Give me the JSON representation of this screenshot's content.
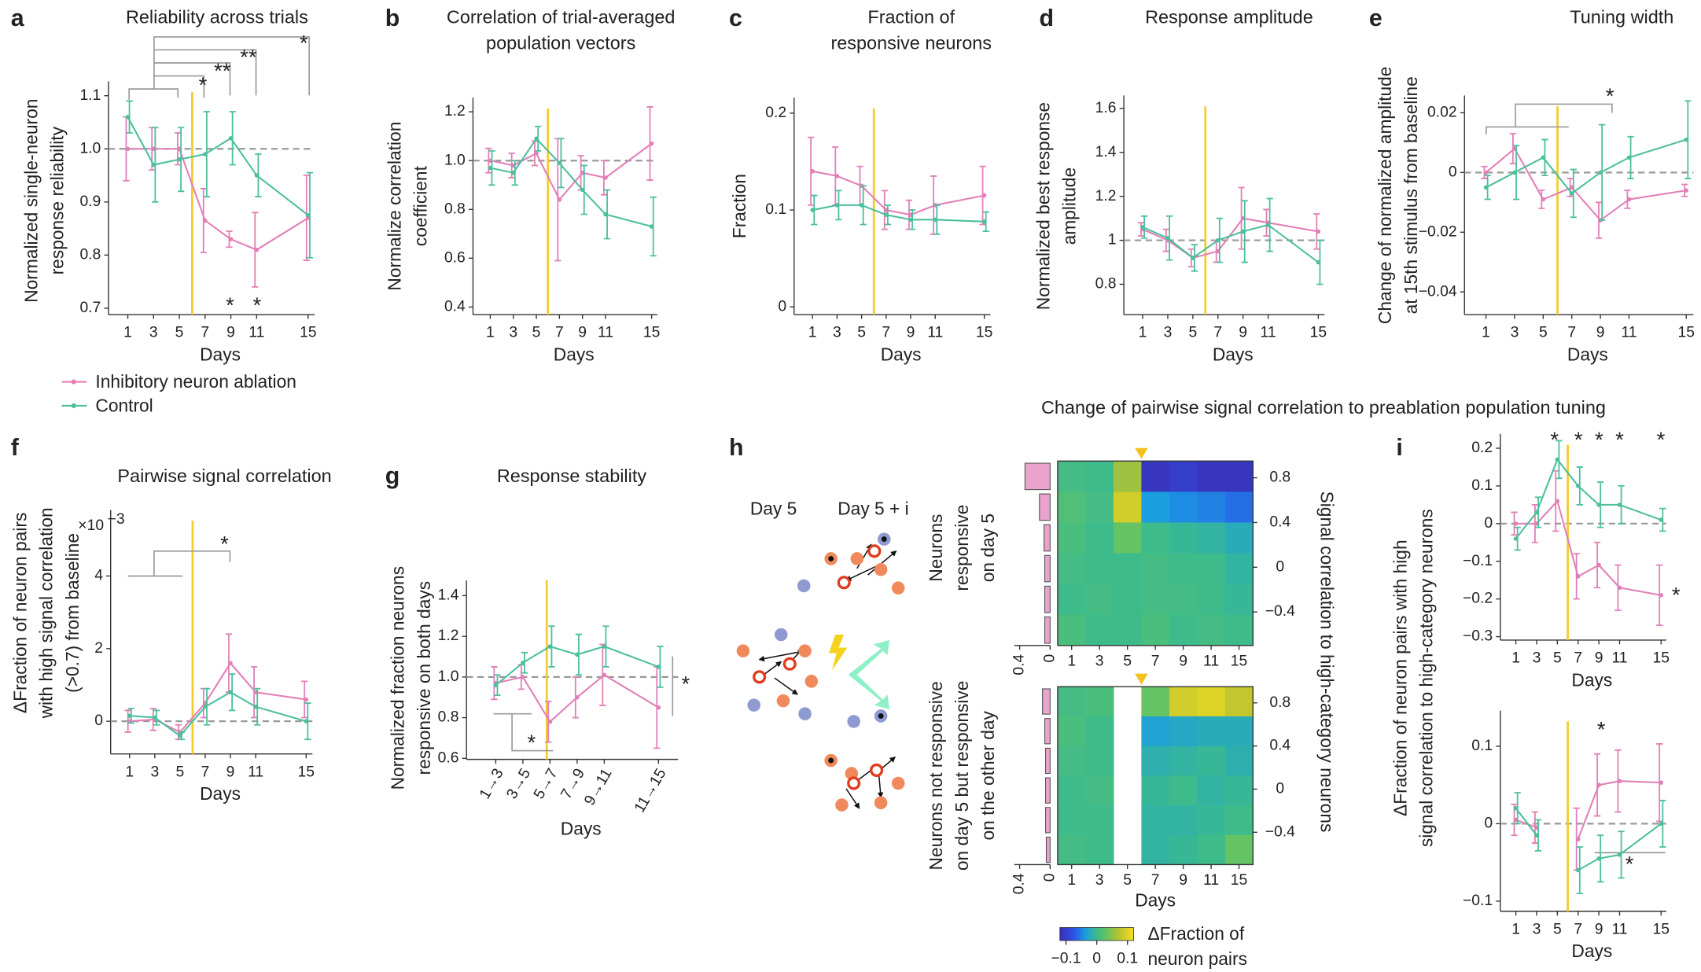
{
  "chart_data": [
    {
      "type": "line",
      "letter": "a",
      "title": [
        "Reliability across trials"
      ],
      "ylabel": [
        "Normalized single-neuron",
        "response reliability"
      ],
      "xlabel": "Days",
      "x": [
        1,
        3,
        5,
        7,
        9,
        11,
        15
      ],
      "xticks": [
        1,
        3,
        5,
        7,
        9,
        11,
        15
      ],
      "xlim": [
        -0.5,
        15.5
      ],
      "ylim": [
        0.688,
        1.127
      ],
      "yticks": [
        0.7,
        0.8,
        0.9,
        {
          "value": 1,
          "label": "1.0"
        },
        1.1
      ],
      "reference_line": 1,
      "ablation_day": 6,
      "series": [
        {
          "name": "Inhibitory neuron ablation",
          "color": "#e27fb8",
          "values": [
            1.0,
            1.0,
            1.0,
            0.865,
            0.83,
            0.81,
            0.87
          ],
          "errors": [
            0.06,
            0.04,
            0.03,
            0.06,
            0.015,
            0.07,
            0.08
          ]
        },
        {
          "name": "Control",
          "color": "#4cbf9d",
          "values": [
            1.06,
            0.97,
            0.98,
            0.99,
            1.02,
            0.95,
            0.875
          ],
          "errors": [
            0.03,
            0.07,
            0.06,
            0.08,
            0.05,
            0.04,
            0.08
          ]
        }
      ],
      "annotations": [
        {
          "text": "*",
          "color": "#e27fb8"
        },
        {
          "text": "**",
          "color": "#e27fb8"
        },
        {
          "text": "**",
          "color": "#e27fb8"
        },
        {
          "text": "*",
          "color": "#e27fb8"
        },
        {
          "text": "*",
          "color": "#e27fb8"
        },
        {
          "text": "*",
          "color": "#e27fb8"
        }
      ]
    },
    {
      "type": "line",
      "letter": "b",
      "title": [
        "Correlation of trial-averaged",
        "population vectors"
      ],
      "ylabel": [
        "Normalize correlation",
        "coefficient"
      ],
      "xlabel": "Days",
      "x": [
        1,
        3,
        5,
        7,
        9,
        11,
        15
      ],
      "xticks": [
        1,
        3,
        5,
        7,
        9,
        11,
        15
      ],
      "xlim": [
        -0.5,
        15.5
      ],
      "ylim": [
        0.369,
        1.258
      ],
      "yticks": [
        0.4,
        0.6,
        0.8,
        {
          "value": 1,
          "label": "1.0"
        },
        1.2
      ],
      "reference_line": 1,
      "ablation_day": 6,
      "series": [
        {
          "color": "#e27fb8",
          "values": [
            1.0,
            0.98,
            1.03,
            0.84,
            0.95,
            0.93,
            1.07
          ],
          "errors": [
            0.05,
            0.05,
            0.05,
            0.25,
            0.07,
            0.07,
            0.15
          ]
        },
        {
          "color": "#4cbf9d",
          "values": [
            0.97,
            0.95,
            1.09,
            0.99,
            0.88,
            0.78,
            0.73
          ],
          "errors": [
            0.07,
            0.05,
            0.05,
            0.1,
            0.1,
            0.1,
            0.12
          ]
        }
      ]
    },
    {
      "type": "line",
      "letter": "c",
      "title": [
        "Fraction of",
        "responsive neurons"
      ],
      "ylabel": [
        "Fraction"
      ],
      "xlabel": "Days",
      "x": [
        1,
        3,
        5,
        7,
        9,
        11,
        15
      ],
      "xticks": [
        1,
        3,
        5,
        7,
        9,
        11,
        15
      ],
      "xlim": [
        -0.5,
        15.5
      ],
      "ylim": [
        -0.008,
        0.216
      ],
      "yticks": [
        0,
        0.1,
        0.2
      ],
      "ablation_day": 6,
      "series": [
        {
          "color": "#e27fb8",
          "values": [
            0.14,
            0.135,
            0.125,
            0.1,
            0.095,
            0.105,
            0.115
          ],
          "errors": [
            0.035,
            0.03,
            0.02,
            0.02,
            0.015,
            0.03,
            0.03
          ]
        },
        {
          "color": "#4cbf9d",
          "values": [
            0.1,
            0.105,
            0.105,
            0.095,
            0.09,
            0.09,
            0.088
          ],
          "errors": [
            0.015,
            0.015,
            0.02,
            0.01,
            0.01,
            0.015,
            0.01
          ]
        }
      ]
    },
    {
      "type": "line",
      "letter": "d",
      "title": [
        "Response amplitude"
      ],
      "ylabel": [
        "Normalized best response",
        "amplitude"
      ],
      "xlabel": "Days",
      "x": [
        1,
        3,
        5,
        7,
        9,
        11,
        15
      ],
      "xticks": [
        1,
        3,
        5,
        7,
        9,
        11,
        15
      ],
      "xlim": [
        -0.5,
        15.5
      ],
      "ylim": [
        0.662,
        1.659
      ],
      "yticks": [
        0.8,
        1,
        1.2,
        1.4,
        1.6
      ],
      "reference_line": 1,
      "ablation_day": 6,
      "series": [
        {
          "color": "#e27fb8",
          "values": [
            1.05,
            1.0,
            0.92,
            0.95,
            1.1,
            1.08,
            1.04
          ],
          "errors": [
            0.03,
            0.05,
            0.04,
            0.05,
            0.14,
            0.06,
            0.08
          ]
        },
        {
          "color": "#4cbf9d",
          "values": [
            1.06,
            1.01,
            0.92,
            1.0,
            1.04,
            1.07,
            0.9
          ],
          "errors": [
            0.05,
            0.1,
            0.06,
            0.1,
            0.14,
            0.12,
            0.1
          ]
        }
      ]
    },
    {
      "type": "line",
      "letter": "e",
      "title": [
        "Tuning width"
      ],
      "ylabel": [
        "Change of normalized amplitude",
        "at 15th stimulus from baseline"
      ],
      "xlabel": "Days",
      "x": [
        1,
        3,
        5,
        7,
        9,
        11,
        15
      ],
      "xticks": [
        1,
        3,
        5,
        7,
        9,
        11,
        15
      ],
      "xlim": [
        -0.5,
        15.5
      ],
      "ylim": [
        -0.0476,
        0.0258
      ],
      "yticks": [
        {
          "value": -0.04,
          "label": "−0.04"
        },
        {
          "value": -0.02,
          "label": "−0.02"
        },
        0,
        0.02
      ],
      "reference_line": 0,
      "ablation_day": 6,
      "series": [
        {
          "color": "#e27fb8",
          "values": [
            0,
            0.008,
            -0.009,
            -0.005,
            -0.016,
            -0.009,
            -0.006
          ],
          "errors": [
            0.002,
            0.005,
            0.003,
            0.003,
            0.006,
            0.003,
            0.002
          ]
        },
        {
          "color": "#4cbf9d",
          "values": [
            -0.005,
            0.0,
            0.005,
            -0.007,
            0.0,
            0.005,
            0.011
          ],
          "errors": [
            0.004,
            0.009,
            0.006,
            0.008,
            0.016,
            0.007,
            0.013
          ]
        }
      ],
      "annotations": [
        {
          "text": "*",
          "color": "#e27fb8"
        }
      ]
    },
    {
      "type": "line",
      "letter": "f",
      "title": [
        "Pairwise  signal correlation"
      ],
      "ylabel": [
        "ΔFraction of neuron pairs",
        "with high signal correlation",
        "(>0.7) from baseline"
      ],
      "xlabel": "Days",
      "multiplier": "×10",
      "multiplier_exp": "−3",
      "x": [
        1,
        3,
        5,
        7,
        9,
        11,
        15
      ],
      "xticks": [
        1,
        3,
        5,
        7,
        9,
        11,
        15
      ],
      "xlim": [
        -0.5,
        15.5
      ],
      "ylim": [
        -0.9,
        5.82
      ],
      "yticks": [
        0,
        2,
        4
      ],
      "reference_line": 0,
      "ablation_day": 6,
      "series": [
        {
          "color": "#e27fb8",
          "values": [
            0.0,
            0.05,
            -0.3,
            0.5,
            1.6,
            0.8,
            0.6
          ],
          "errors": [
            0.3,
            0.3,
            0.2,
            0.4,
            0.8,
            0.7,
            0.5
          ]
        },
        {
          "color": "#4cbf9d",
          "values": [
            0.15,
            0.1,
            -0.4,
            0.4,
            0.8,
            0.4,
            0.0
          ],
          "errors": [
            0.2,
            0.2,
            0.1,
            0.5,
            0.5,
            0.5,
            0.5
          ]
        }
      ],
      "annotations": [
        {
          "text": "*",
          "color": "#e27fb8"
        }
      ]
    },
    {
      "type": "line",
      "letter": "g",
      "title": [
        "Response stability"
      ],
      "ylabel": [
        "Normalized fraction neurons",
        "responsive on both days"
      ],
      "xlabel": "Days",
      "categories": [
        "1→3",
        "3→5",
        "5→7",
        "7→9",
        "9→11",
        "11→15"
      ],
      "ylim": [
        0.595,
        1.475
      ],
      "yticks": [
        0.6,
        0.8,
        {
          "value": 1,
          "label": "1.0"
        },
        1.2,
        1.4
      ],
      "reference_line": 1,
      "series": [
        {
          "color": "#e27fb8",
          "values": [
            0.97,
            1.0,
            0.78,
            0.9,
            1.01,
            0.85
          ],
          "errors": [
            0.08,
            0.06,
            0.1,
            0.1,
            0.15,
            0.2
          ]
        },
        {
          "color": "#4cbf9d",
          "values": [
            0.96,
            1.07,
            1.15,
            1.11,
            1.15,
            1.05
          ],
          "errors": [
            0.05,
            0.05,
            0.1,
            0.1,
            0.1,
            0.1
          ]
        }
      ],
      "annotations": [
        {
          "text": "*",
          "color": "#e27fb8"
        },
        {
          "text": "*",
          "color": "#4cbf9d"
        }
      ]
    },
    {
      "type": "heatmap",
      "letter": "h",
      "title": "Change of pairwise signal correlation to preablation population tuning",
      "diagram_labels": [
        "Day 5",
        "Day 5 + i"
      ],
      "row_group_labels": [
        [
          "Neurons",
          "responsive",
          "on day 5"
        ],
        [
          "Neurons not responsive",
          "on day 5 but responsive",
          "on the other day"
        ]
      ],
      "ylabel": "Signal correlation to high-category neurons",
      "xlabel": "Days",
      "categories": [
        1,
        3,
        5,
        7,
        9,
        11,
        15
      ],
      "ylim": [
        -0.7,
        0.95
      ],
      "yticks": [
        0.8,
        0.4,
        0,
        {
          "value": -0.4,
          "label": "−0.4"
        }
      ],
      "bar_xlim": [
        0,
        0.47
      ],
      "bar_xticks": [
        0.4,
        0
      ],
      "bar_color": "#e9a3cc",
      "maps": [
        {
          "values": [
            [
              0.005,
              0.0,
              0.06,
              -0.11,
              -0.1,
              -0.11,
              -0.11
            ],
            [
              0.015,
              0.005,
              0.09,
              -0.035,
              -0.045,
              -0.05,
              -0.06
            ],
            [
              0.01,
              0.0,
              0.03,
              0.0,
              -0.005,
              -0.01,
              -0.02
            ],
            [
              0.005,
              0.0,
              0.0,
              0.005,
              0.0,
              0.0,
              -0.01
            ],
            [
              0.0,
              0.005,
              0.0,
              0.005,
              0.005,
              0.0,
              -0.005
            ],
            [
              0.01,
              0.0,
              0.0,
              0.01,
              0.0,
              0.005,
              0.0
            ]
          ],
          "bars": [
            0.33,
            0.14,
            0.08,
            0.07,
            0.07,
            0.07
          ]
        },
        {
          "values": [
            [
              0.005,
              0.01,
              null,
              0.03,
              0.09,
              0.1,
              0.08
            ],
            [
              0.01,
              0.0,
              null,
              -0.03,
              -0.025,
              -0.02,
              -0.02
            ],
            [
              0.005,
              0.0,
              null,
              -0.015,
              -0.01,
              -0.005,
              -0.015
            ],
            [
              0.0,
              0.005,
              null,
              -0.005,
              0.0,
              -0.01,
              -0.005
            ],
            [
              0.0,
              0.0,
              null,
              -0.01,
              -0.01,
              -0.005,
              0.0
            ],
            [
              0.005,
              0.0,
              null,
              -0.01,
              -0.005,
              0.0,
              0.03
            ]
          ],
          "bars": [
            0.1,
            0.07,
            0.06,
            0.06,
            0.06,
            0.05
          ]
        }
      ],
      "colorbar": {
        "lim": [
          -0.12,
          0.12
        ],
        "ticks": [
          {
            "value": -0.1,
            "label": "−0.1"
          },
          0,
          0.1
        ],
        "label": [
          "ΔFraction of",
          "neuron pairs"
        ]
      }
    },
    {
      "type": "line",
      "letter": "i",
      "ylabel": [
        "ΔFraction of neuron pairs with high",
        "signal correlation to high-category neurons"
      ],
      "xlabel": "Days",
      "x": [
        1,
        3,
        5,
        7,
        9,
        11,
        15
      ],
      "xticks": [
        1,
        3,
        5,
        7,
        9,
        11,
        15
      ],
      "xlim": [
        -0.5,
        15.5
      ],
      "ylim": [
        -0.309,
        0.238
      ],
      "yticks": [
        {
          "value": -0.3,
          "label": "−0.3"
        },
        {
          "value": -0.2,
          "label": "−0.2"
        },
        {
          "value": -0.1,
          "label": "−0.1"
        },
        0,
        0.1,
        0.2
      ],
      "reference_line": 0,
      "ablation_day": 6,
      "series": [
        {
          "color": "#e27fb8",
          "values": [
            0.0,
            0.0,
            0.06,
            -0.14,
            -0.11,
            -0.17,
            -0.19
          ],
          "errors": [
            0.03,
            0.05,
            0.08,
            0.06,
            0.06,
            0.06,
            0.08
          ]
        },
        {
          "color": "#4cbf9d",
          "values": [
            -0.04,
            0.03,
            0.17,
            0.1,
            0.05,
            0.05,
            0.01
          ],
          "errors": [
            0.03,
            0.04,
            0.05,
            0.05,
            0.06,
            0.05,
            0.03
          ]
        }
      ],
      "annotations": [
        {
          "text": "*",
          "color": "#4cbf9d"
        },
        {
          "text": "*",
          "color": "#4cbf9d"
        },
        {
          "text": "*",
          "color": "#4cbf9d"
        },
        {
          "text": "*",
          "color": "#4cbf9d"
        },
        {
          "text": "*",
          "color": "#4cbf9d"
        },
        {
          "text": "*",
          "color": "#e27fb8"
        }
      ]
    },
    {
      "type": "line",
      "xlabel": "Days",
      "x": [
        1,
        3,
        5,
        7,
        9,
        11,
        15
      ],
      "xticks": [
        1,
        3,
        5,
        7,
        9,
        11,
        15
      ],
      "xlim": [
        -0.5,
        15.5
      ],
      "ylim": [
        -0.113,
        0.146
      ],
      "yticks": [
        {
          "value": -0.1,
          "label": "−0.1"
        },
        0,
        0.1
      ],
      "reference_line": 0,
      "ablation_day": 6,
      "series": [
        {
          "color": "#e27fb8",
          "values": [
            0.005,
            -0.005,
            null,
            -0.02,
            0.05,
            0.055,
            0.053
          ],
          "errors": [
            0.02,
            0.02,
            null,
            0.04,
            0.04,
            0.04,
            0.05
          ]
        },
        {
          "color": "#4cbf9d",
          "values": [
            0.02,
            -0.015,
            null,
            -0.06,
            -0.045,
            -0.04,
            0.0
          ],
          "errors": [
            0.02,
            0.02,
            null,
            0.03,
            0.03,
            0.03,
            0.03
          ]
        }
      ],
      "annotations": [
        {
          "text": "*",
          "color": "#4cbf9d"
        },
        {
          "text": "*",
          "color": "#e27fb8"
        }
      ]
    }
  ]
}
